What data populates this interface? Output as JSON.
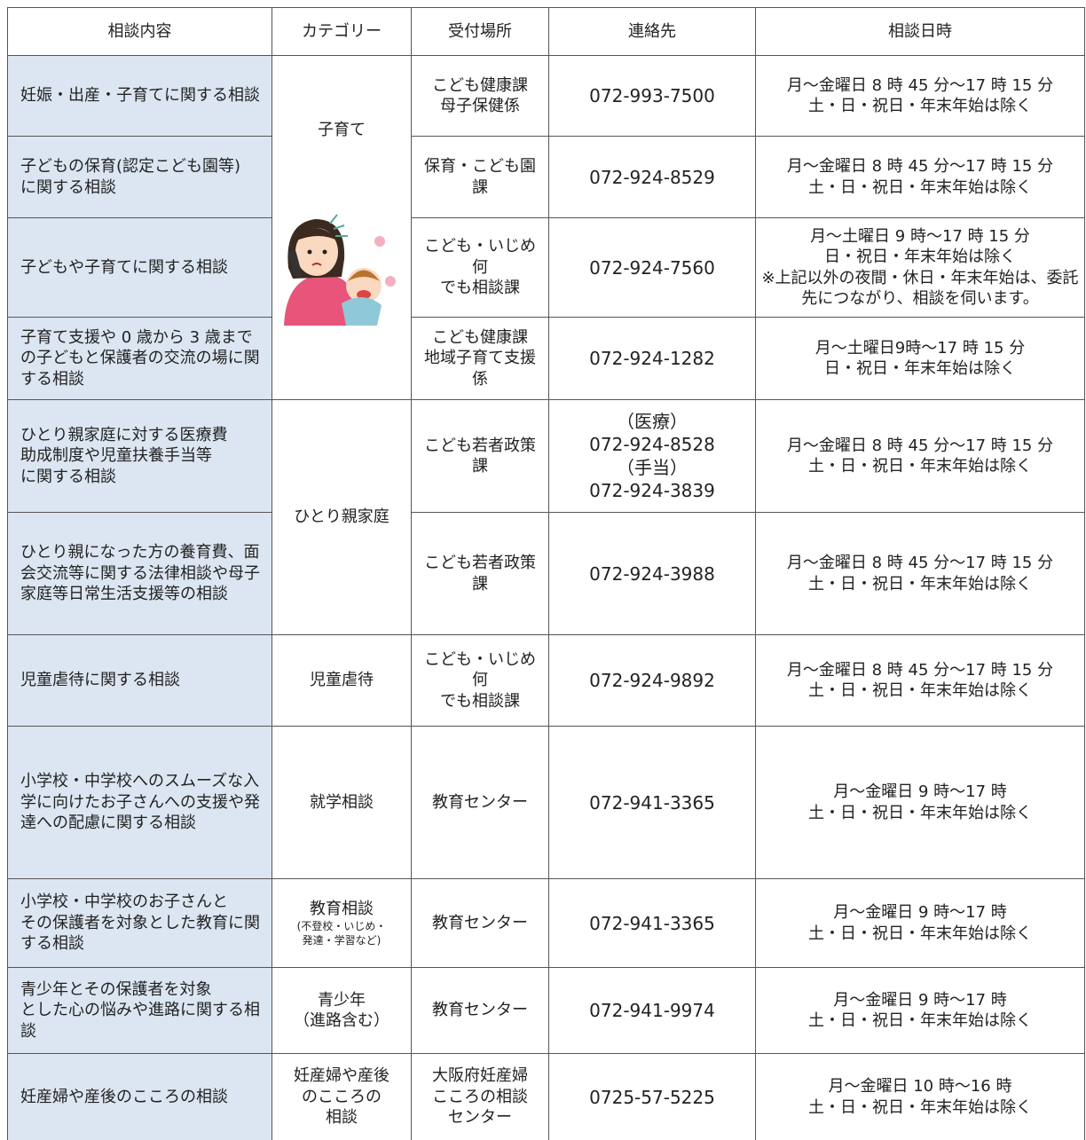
{
  "table": {
    "header": [
      "相談内容",
      "カテゴリー",
      "受付場所",
      "連絡先",
      "相談日時"
    ],
    "rows": [
      {
        "content": "妊娠・出産・子育てに関する相談",
        "category": "子育て",
        "place": "こども健康課\n母子保健係",
        "contact": "072-993-7500",
        "hours": "月～金曜日 8 時 45 分～17 時 15 分\n土・日・祝日・年末年始は除く"
      },
      {
        "content": "子どもの保育(認定こども園等)\nに関する相談",
        "place": "保育・こども園課",
        "contact": "072-924-8529",
        "hours": "月～金曜日 8 時 45 分～17 時 15 分\n土・日・祝日・年末年始は除く"
      },
      {
        "content": "子どもや子育てに関する相談",
        "place": "こども・いじめ何\nでも相談課",
        "contact": "072-924-7560",
        "hours": "月～土曜日 9 時～17 時 15 分\n日・祝日・年末年始は除く\n※上記以外の夜間・休日・年末年始は、委託先につながり、相談を伺います。"
      },
      {
        "content": "子育て支援や 0 歳から 3 歳までの子どもと保護者の交流の場に関する相談",
        "place": "こども健康課\n地域子育て支援係",
        "contact": "072-924-1282",
        "hours": "月～土曜日9時～17 時 15 分\n日・祝日・年末年始は除く"
      },
      {
        "content": "ひとり親家庭に対する医療費\n助成制度や児童扶養手当等\nに関する相談",
        "category": "ひとり親家庭",
        "place": "こども若者政策課",
        "contact": "（医療）\n072-924-8528\n（手当）\n072-924-3839",
        "hours": "月～金曜日 8 時 45 分～17 時 15 分\n土・日・祝日・年末年始は除く"
      },
      {
        "content": "ひとり親になった方の養育費、面会交流等に関する法律相談や母子家庭等日常生活支援等の相談",
        "place": "こども若者政策課",
        "contact": "072-924-3988",
        "hours": "月～金曜日 8 時 45 分～17 時 15 分\n土・日・祝日・年末年始は除く"
      },
      {
        "content": "児童虐待に関する相談",
        "category": "児童虐待",
        "place": "こども・いじめ何\nでも相談課",
        "contact": "072-924-9892",
        "hours": "月～金曜日 8 時 45 分～17 時 15 分\n土・日・祝日・年末年始は除く"
      },
      {
        "content": "小学校・中学校へのスムーズな入学に向けたお子さんへの支援や発達への配慮に関する相談",
        "category": "就学相談",
        "place": "教育センター",
        "contact": "072-941-3365",
        "hours": "月～金曜日 9 時～17 時\n土・日・祝日・年末年始は除く"
      },
      {
        "content": "小学校・中学校のお子さんと\nその保護者を対象とした教育に関する相談",
        "category": "教育相談",
        "category_note": "(不登校・いじめ・\n発達・学習など)",
        "place": "教育センター",
        "contact": "072-941-3365",
        "hours": "月～金曜日 9 時～17 時\n土・日・祝日・年末年始は除く"
      },
      {
        "content": "青少年とその保護者を対象\nとした心の悩みや進路に関する相談",
        "category": "青少年\n（進路含む）",
        "place": "教育センター",
        "contact": "072-941-9974",
        "hours": "月～金曜日 9 時～17 時\n土・日・祝日・年末年始は除く"
      },
      {
        "content": "妊産婦や産後のこころの相談",
        "category": "妊産婦や産後\nのこころの\n相談",
        "place": "大阪府妊産婦\nこころの相談\nセンター",
        "contact": "0725-57-5225",
        "hours": "月～金曜日 10 時～16 時\n土・日・祝日・年末年始は除く"
      }
    ]
  }
}
